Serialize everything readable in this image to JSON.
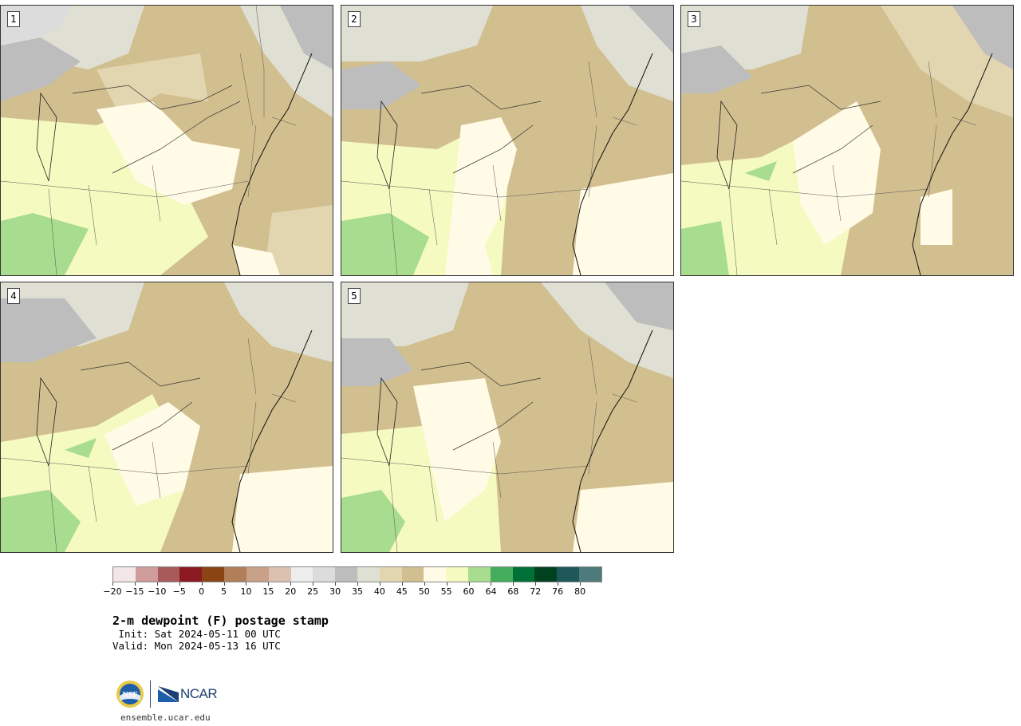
{
  "panels": [
    {
      "label": "1"
    },
    {
      "label": "2"
    },
    {
      "label": "3"
    },
    {
      "label": "4"
    },
    {
      "label": "5"
    }
  ],
  "colorbar": {
    "colors": [
      "#f2e6e6",
      "#cf9c9c",
      "#a85a5a",
      "#8c1a22",
      "#8a4414",
      "#b07e58",
      "#c9a088",
      "#dcc0b0",
      "#ededed",
      "#dcdcdc",
      "#bdbdbd",
      "#dfdfd3",
      "#e2d6b0",
      "#d2bf8f",
      "#fffbe6",
      "#f5fac0",
      "#a8dc8e",
      "#43ad5c",
      "#007036",
      "#00411f",
      "#1e5858",
      "#4d7b7b"
    ],
    "tick_labels": [
      "−20",
      "−15",
      "−10",
      "−5",
      "0",
      "5",
      "10",
      "15",
      "20",
      "25",
      "30",
      "35",
      "40",
      "45",
      "50",
      "55",
      "60",
      "64",
      "68",
      "72",
      "76",
      "80"
    ]
  },
  "title": "2-m dewpoint (F) postage stamp",
  "init": " Init: Sat 2024-05-11 00 UTC",
  "valid": "Valid: Mon 2024-05-13 16 UTC",
  "logos": {
    "nsf": "NSF",
    "ncar": "NCAR"
  },
  "site": "ensemble.ucar.edu"
}
